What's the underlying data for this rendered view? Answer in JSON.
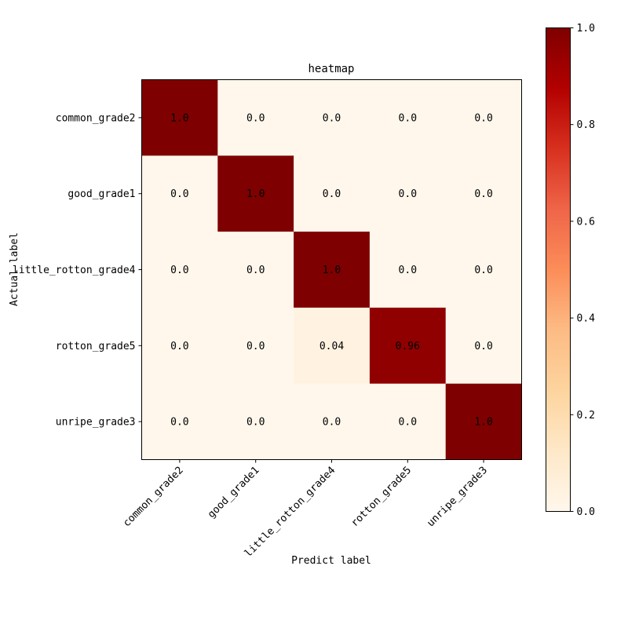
{
  "chart_data": {
    "type": "heatmap",
    "title": "heatmap",
    "xlabel": "Predict label",
    "ylabel": "Actual label",
    "x_categories": [
      "common_grade2",
      "good_grade1",
      "little_rotton_grade4",
      "rotton_grade5",
      "unripe_grade3"
    ],
    "y_categories": [
      "common_grade2",
      "good_grade1",
      "little_rotton_grade4",
      "rotton_grade5",
      "unripe_grade3"
    ],
    "values": [
      [
        1.0,
        0.0,
        0.0,
        0.0,
        0.0
      ],
      [
        0.0,
        1.0,
        0.0,
        0.0,
        0.0
      ],
      [
        0.0,
        0.0,
        1.0,
        0.0,
        0.0
      ],
      [
        0.0,
        0.0,
        0.04,
        0.96,
        0.0
      ],
      [
        0.0,
        0.0,
        0.0,
        0.0,
        1.0
      ]
    ],
    "value_labels": [
      [
        "1.0",
        "0.0",
        "0.0",
        "0.0",
        "0.0"
      ],
      [
        "0.0",
        "1.0",
        "0.0",
        "0.0",
        "0.0"
      ],
      [
        "0.0",
        "0.0",
        "1.0",
        "0.0",
        "0.0"
      ],
      [
        "0.0",
        "0.0",
        "0.04",
        "0.96",
        "0.0"
      ],
      [
        "0.0",
        "0.0",
        "0.0",
        "0.0",
        "1.0"
      ]
    ],
    "colorbar": {
      "range": [
        0.0,
        1.0
      ],
      "ticks": [
        "0.0",
        "0.2",
        "0.4",
        "0.6",
        "0.8",
        "1.0"
      ],
      "colormap": "OrRd",
      "colors": [
        "#fff7ec",
        "#fee8c8",
        "#fdd49e",
        "#fdbb84",
        "#fc8d59",
        "#ef6548",
        "#d7301f",
        "#b30000",
        "#7f0000"
      ]
    }
  }
}
